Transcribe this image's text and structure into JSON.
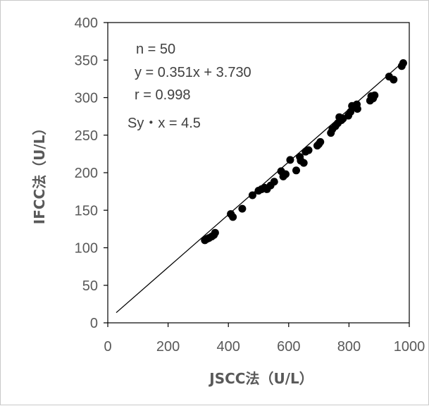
{
  "chart_data": {
    "type": "scatter",
    "xlabel": "JSCC法（U/L）",
    "ylabel": "IFCC法（U/L）",
    "xlim": [
      0,
      1000
    ],
    "ylim": [
      0,
      400
    ],
    "xticks": [
      0,
      200,
      400,
      600,
      800,
      1000
    ],
    "yticks": [
      0,
      50,
      100,
      150,
      200,
      250,
      300,
      350,
      400
    ],
    "grid": false,
    "legend": "none",
    "annotations": [
      "n = 50",
      "y = 0.351x + 3.730",
      "r = 0.998",
      "Sy・x = 4.5"
    ],
    "regression": {
      "slope": 0.351,
      "intercept": 3.73,
      "x_range": [
        28,
        985
      ]
    },
    "points": [
      [
        322,
        110
      ],
      [
        330,
        112
      ],
      [
        336,
        113
      ],
      [
        345,
        115
      ],
      [
        352,
        117
      ],
      [
        356,
        120
      ],
      [
        408,
        145
      ],
      [
        415,
        141
      ],
      [
        446,
        152
      ],
      [
        480,
        170
      ],
      [
        510,
        178
      ],
      [
        520,
        180
      ],
      [
        528,
        178
      ],
      [
        552,
        188
      ],
      [
        575,
        202
      ],
      [
        582,
        195
      ],
      [
        605,
        217
      ],
      [
        625,
        203
      ],
      [
        637,
        221
      ],
      [
        650,
        213
      ],
      [
        656,
        228
      ],
      [
        666,
        230
      ],
      [
        695,
        236
      ],
      [
        705,
        241
      ],
      [
        740,
        253
      ],
      [
        745,
        258
      ],
      [
        755,
        262
      ],
      [
        763,
        266
      ],
      [
        768,
        274
      ],
      [
        780,
        272
      ],
      [
        798,
        276
      ],
      [
        805,
        281
      ],
      [
        810,
        289
      ],
      [
        820,
        287
      ],
      [
        826,
        291
      ],
      [
        828,
        285
      ],
      [
        870,
        296
      ],
      [
        874,
        302
      ],
      [
        880,
        299
      ],
      [
        885,
        303
      ],
      [
        933,
        328
      ],
      [
        948,
        324
      ],
      [
        975,
        342
      ],
      [
        980,
        346
      ],
      [
        775,
        270
      ],
      [
        700,
        238
      ],
      [
        640,
        216
      ],
      [
        590,
        198
      ],
      [
        540,
        183
      ],
      [
        500,
        176
      ]
    ],
    "colors": {
      "points": "#000000",
      "line": "#000000",
      "axis": "#000000",
      "tick_text": "#595959"
    }
  }
}
